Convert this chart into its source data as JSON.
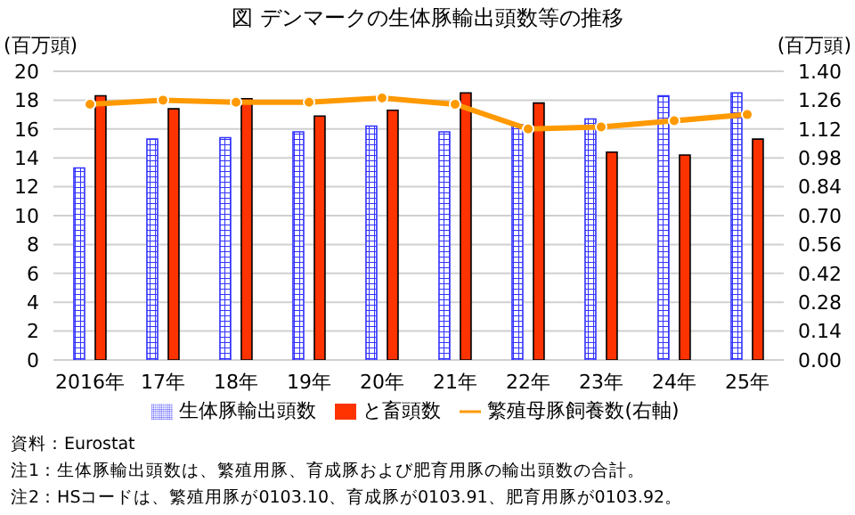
{
  "chart_data": {
    "type": "bar",
    "title": "図 デンマークの生体豚輸出頭数等の推移",
    "ylabel": "(百万頭)",
    "y2label": "(百万頭)",
    "categories": [
      "2016年",
      "17年",
      "18年",
      "19年",
      "20年",
      "21年",
      "22年",
      "23年",
      "24年",
      "25年"
    ],
    "series": [
      {
        "name": "生体豚輸出頭数",
        "color": "#3333ff",
        "values": [
          13.3,
          15.3,
          15.4,
          15.8,
          16.2,
          15.8,
          16.3,
          16.7,
          18.3,
          18.5
        ]
      },
      {
        "name": "と畜頭数",
        "color": "#ff3300",
        "values": [
          18.3,
          17.4,
          18.1,
          16.9,
          17.3,
          18.5,
          17.8,
          14.4,
          14.2,
          15.3
        ]
      },
      {
        "name": "繁殖母豚飼養数(右軸)",
        "type": "line",
        "axis": "y2",
        "color": "#ff9900",
        "values": [
          1.24,
          1.26,
          1.25,
          1.25,
          1.27,
          1.24,
          1.12,
          1.13,
          1.16,
          1.19
        ]
      }
    ],
    "ylim": [
      0,
      20
    ],
    "yticks": [
      0,
      2,
      4,
      6,
      8,
      10,
      12,
      14,
      16,
      18,
      20
    ],
    "y2lim": [
      0,
      1.4
    ],
    "y2ticks": [
      {
        "value": 0,
        "label": "0.00"
      },
      {
        "value": 0.14,
        "label": "0.14"
      },
      {
        "value": 0.28,
        "label": "0.28"
      },
      {
        "value": 0.42,
        "label": "0.42"
      },
      {
        "value": 0.56,
        "label": "0.56"
      },
      {
        "value": 0.7,
        "label": "0.70"
      },
      {
        "value": 0.84,
        "label": "0.84"
      },
      {
        "value": 0.98,
        "label": "0.98"
      },
      {
        "value": 1.12,
        "label": "1.12"
      },
      {
        "value": 1.26,
        "label": "1.26"
      },
      {
        "value": 1.4,
        "label": "1.40"
      }
    ],
    "grid": "y",
    "legend": "bottom",
    "marker": "circle",
    "line_style": "solid",
    "annotations": [
      "資料：Eurostat",
      "注1：生体豚輸出頭数は、繁殖用豚、育成豚および肥育用豚の輸出頭数の合計。",
      "注2：HSコードは、繁殖用豚が0103.10、育成豚が0103.91、肥育用豚が0103.92。"
    ]
  }
}
